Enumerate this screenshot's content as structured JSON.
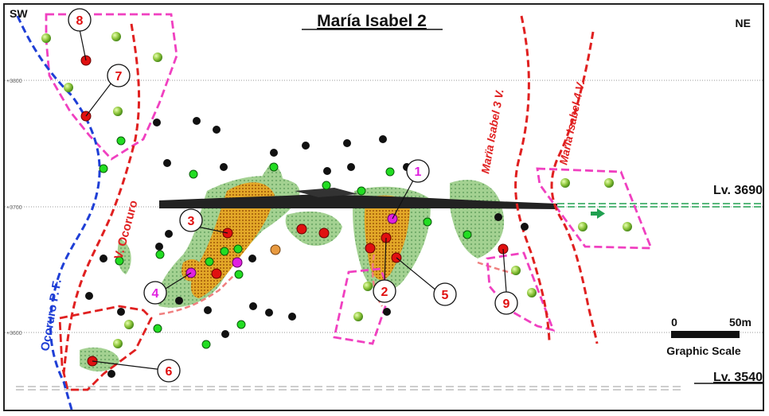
{
  "header": {
    "title": "María Isabel 2",
    "left_direction": "SW",
    "right_direction": "NE"
  },
  "elevation_ticks": [
    "+3800",
    "+3700",
    "+3600"
  ],
  "levels": {
    "upper": "Lv. 3690",
    "lower": "Lv. 3540"
  },
  "veins": {
    "ocoruro_fault": "Ocoruro P. F.",
    "ocoruro_vein": "V. Ocoruro",
    "mi3_vein": "Marïa Isabel 3 V.",
    "mi4_vein": "Marïa Isabel 4 V."
  },
  "scale": {
    "start": "0",
    "end": "50m",
    "label": "Graphic Scale"
  },
  "callouts": [
    "1",
    "2",
    "3",
    "4",
    "5",
    "6",
    "7",
    "8",
    "9"
  ],
  "colors": {
    "fault_blue": "#1f3fd6",
    "vein_red": "#e02020",
    "target_magenta": "#f040c0",
    "level_green": "#20a050",
    "ore_orange": "#e0a020",
    "halo_green": "#8cbf7a",
    "drill_black": "#111111",
    "drill_green": "#22dd22",
    "drill_red": "#e01010",
    "drill_magenta": "#e020e0"
  }
}
